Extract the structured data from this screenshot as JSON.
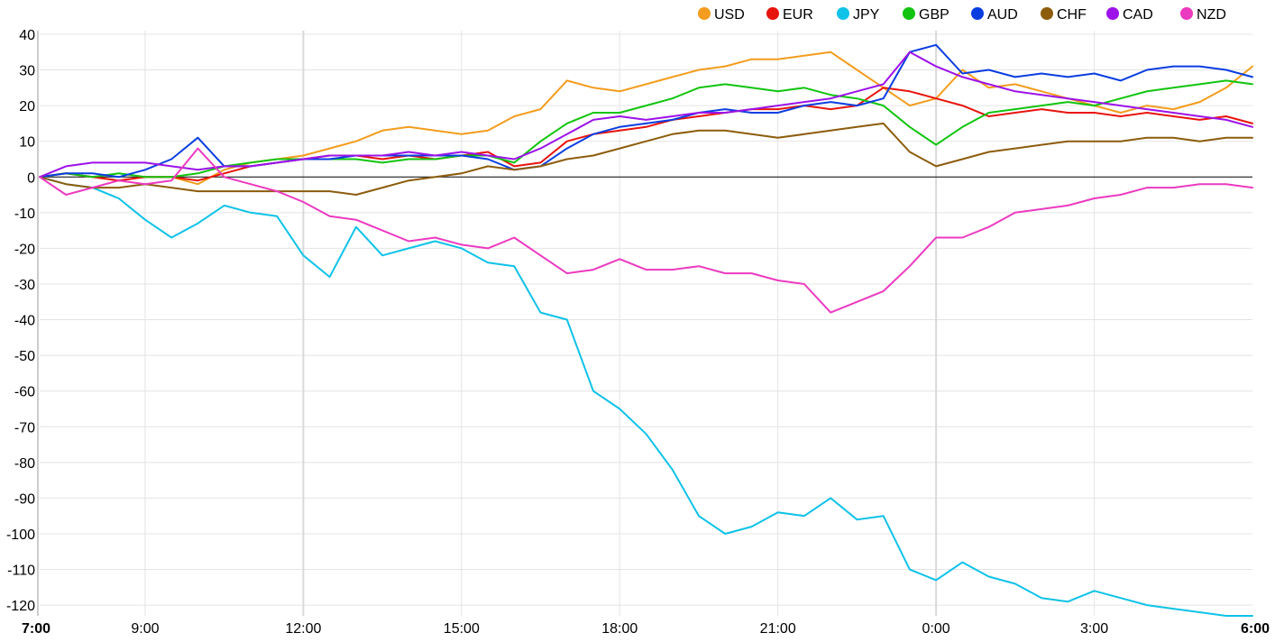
{
  "chart_data": {
    "type": "line",
    "title": "",
    "xlabel": "",
    "ylabel": "",
    "grid": true,
    "legend_position": "top-right",
    "x_ticks": [
      {
        "hour": 0,
        "label": "7:00",
        "bold": true
      },
      {
        "hour": 2,
        "label": "9:00"
      },
      {
        "hour": 5,
        "label": "12:00"
      },
      {
        "hour": 8,
        "label": "15:00"
      },
      {
        "hour": 11,
        "label": "18:00"
      },
      {
        "hour": 14,
        "label": "21:00"
      },
      {
        "hour": 17,
        "label": "0:00"
      },
      {
        "hour": 20,
        "label": "3:00"
      },
      {
        "hour": 23,
        "label": "6:00",
        "bold": true
      }
    ],
    "xlim": [
      0,
      23
    ],
    "ylim": [
      -123,
      41
    ],
    "y_ticks": [
      40,
      30,
      20,
      10,
      0,
      -10,
      -20,
      -30,
      -40,
      -50,
      -60,
      -70,
      -80,
      -90,
      -100,
      -110,
      -120
    ],
    "hours": [
      0,
      0.5,
      1,
      1.5,
      2,
      2.5,
      3,
      3.5,
      4,
      4.5,
      5,
      5.5,
      6,
      6.5,
      7,
      7.5,
      8,
      8.5,
      9,
      9.5,
      10,
      10.5,
      11,
      11.5,
      12,
      12.5,
      13,
      13.5,
      14,
      14.5,
      15,
      15.5,
      16,
      16.5,
      17,
      17.5,
      18,
      18.5,
      19,
      19.5,
      20,
      20.5,
      21,
      21.5,
      22,
      22.5,
      23
    ],
    "series": [
      {
        "name": "USD",
        "color": "#f39c1e",
        "values": [
          0,
          1,
          0,
          -1,
          0,
          0,
          -2,
          2,
          4,
          5,
          6,
          8,
          10,
          13,
          14,
          13,
          12,
          13,
          17,
          19,
          27,
          25,
          24,
          26,
          28,
          30,
          31,
          33,
          33,
          34,
          35,
          30,
          25,
          20,
          22,
          30,
          25,
          26,
          24,
          22,
          20,
          18,
          20,
          19,
          21,
          25,
          31
        ]
      },
      {
        "name": "EUR",
        "color": "#e8140e",
        "values": [
          0,
          1,
          0,
          -1,
          0,
          0,
          -1,
          1,
          3,
          4,
          5,
          6,
          6,
          5,
          6,
          5,
          6,
          7,
          3,
          4,
          10,
          12,
          13,
          14,
          16,
          17,
          18,
          19,
          19,
          20,
          19,
          20,
          25,
          24,
          22,
          20,
          17,
          18,
          19,
          18,
          18,
          17,
          18,
          17,
          16,
          17,
          15
        ]
      },
      {
        "name": "JPY",
        "color": "#0fc2e8",
        "values": [
          0,
          -2,
          -3,
          -6,
          -12,
          -17,
          -13,
          -8,
          -10,
          -11,
          -22,
          -28,
          -14,
          -22,
          -20,
          -18,
          -20,
          -24,
          -25,
          -38,
          -40,
          -60,
          -65,
          -72,
          -82,
          -95,
          -100,
          -98,
          -94,
          -95,
          -90,
          -96,
          -95,
          -110,
          -113,
          -108,
          -112,
          -114,
          -118,
          -119,
          -116,
          -118,
          -120,
          -121,
          -122,
          -123,
          -123
        ]
      },
      {
        "name": "GBP",
        "color": "#12c40f",
        "values": [
          0,
          1,
          0,
          1,
          0,
          0,
          1,
          3,
          4,
          5,
          5,
          5,
          5,
          4,
          5,
          5,
          6,
          6,
          4,
          10,
          15,
          18,
          18,
          20,
          22,
          25,
          26,
          25,
          24,
          25,
          23,
          22,
          20,
          14,
          9,
          14,
          18,
          19,
          20,
          21,
          20,
          22,
          24,
          25,
          26,
          27,
          26
        ]
      },
      {
        "name": "AUD",
        "color": "#0a3ee0",
        "values": [
          0,
          1,
          1,
          0,
          2,
          5,
          11,
          3,
          3,
          4,
          5,
          5,
          6,
          6,
          6,
          6,
          6,
          5,
          2,
          3,
          8,
          12,
          14,
          15,
          16,
          18,
          19,
          18,
          18,
          20,
          21,
          20,
          22,
          35,
          37,
          29,
          30,
          28,
          29,
          28,
          29,
          27,
          30,
          31,
          31,
          30,
          28
        ]
      },
      {
        "name": "CHF",
        "color": "#8c5c0c",
        "values": [
          0,
          -2,
          -3,
          -3,
          -2,
          -3,
          -4,
          -4,
          -4,
          -4,
          -4,
          -4,
          -5,
          -3,
          -1,
          0,
          1,
          3,
          2,
          3,
          5,
          6,
          8,
          10,
          12,
          13,
          13,
          12,
          11,
          12,
          13,
          14,
          15,
          7,
          3,
          5,
          7,
          8,
          9,
          10,
          10,
          10,
          11,
          11,
          10,
          11,
          11
        ]
      },
      {
        "name": "CAD",
        "color": "#9c12e8",
        "values": [
          0,
          3,
          4,
          4,
          4,
          3,
          2,
          3,
          3,
          4,
          5,
          6,
          6,
          6,
          7,
          6,
          7,
          6,
          5,
          8,
          12,
          16,
          17,
          16,
          17,
          18,
          18,
          19,
          20,
          21,
          22,
          24,
          26,
          35,
          31,
          28,
          26,
          24,
          23,
          22,
          21,
          20,
          19,
          18,
          17,
          16,
          14
        ]
      },
      {
        "name": "NZD",
        "color": "#ec3ac0",
        "values": [
          0,
          -5,
          -3,
          -1,
          -2,
          -1,
          8,
          0,
          -2,
          -4,
          -7,
          -11,
          -12,
          -15,
          -18,
          -17,
          -19,
          -20,
          -17,
          -22,
          -27,
          -26,
          -23,
          -26,
          -26,
          -25,
          -27,
          -27,
          -29,
          -30,
          -38,
          -35,
          -32,
          -25,
          -17,
          -17,
          -14,
          -10,
          -9,
          -8,
          -6,
          -5,
          -3,
          -3,
          -2,
          -2,
          -3
        ]
      }
    ]
  }
}
